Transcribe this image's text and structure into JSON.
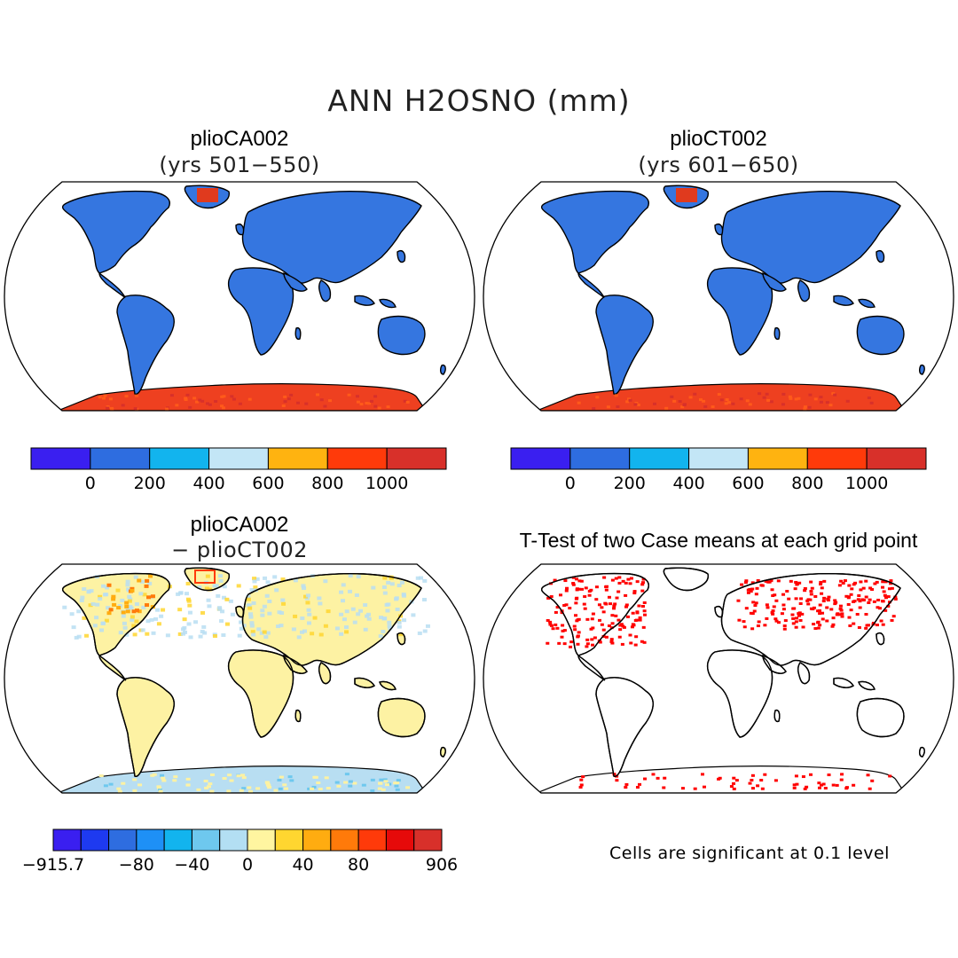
{
  "figure": {
    "title": "ANN H2OSNO (mm)"
  },
  "panels": {
    "top_left": {
      "case": "plioCA002",
      "years": "(yrs 501−550)"
    },
    "top_right": {
      "case": "plioCT002",
      "years": "(yrs 601−650)"
    },
    "bottom_left": {
      "case": "plioCA002",
      "minus": "− plioCT002"
    },
    "bottom_right": {
      "title": "T-Test of two Case means at each grid point",
      "note": "Cells are significant at 0.1 level"
    }
  },
  "colorbar_abs": {
    "colors": [
      "#3a1ff0",
      "#2e6de0",
      "#12b4ee",
      "#c3e6f6",
      "#ffb310",
      "#ff3a0a",
      "#d8302a"
    ],
    "labels": [
      "0",
      "200",
      "400",
      "600",
      "800",
      "1000"
    ]
  },
  "colorbar_diff": {
    "colors": [
      "#3a1ff0",
      "#1e3af0",
      "#2e6de0",
      "#1e90f6",
      "#12b4ee",
      "#6ec8ee",
      "#b3dff3",
      "#fff5a0",
      "#ffd630",
      "#ffac10",
      "#ff7a0a",
      "#ff3a0a",
      "#e60a0a",
      "#d8302a"
    ],
    "labels": [
      "−915.7",
      "−80",
      "−40",
      "0",
      "40",
      "80",
      "906"
    ]
  },
  "map_colors": {
    "land_top": "#3576e0",
    "antarctica_top": "#ee4020",
    "greenland_top": "#e03a1e",
    "land_diff": "#fdf2a3",
    "antarctica_diff": "#b8def2",
    "ttest_sig": "#ff0000"
  }
}
